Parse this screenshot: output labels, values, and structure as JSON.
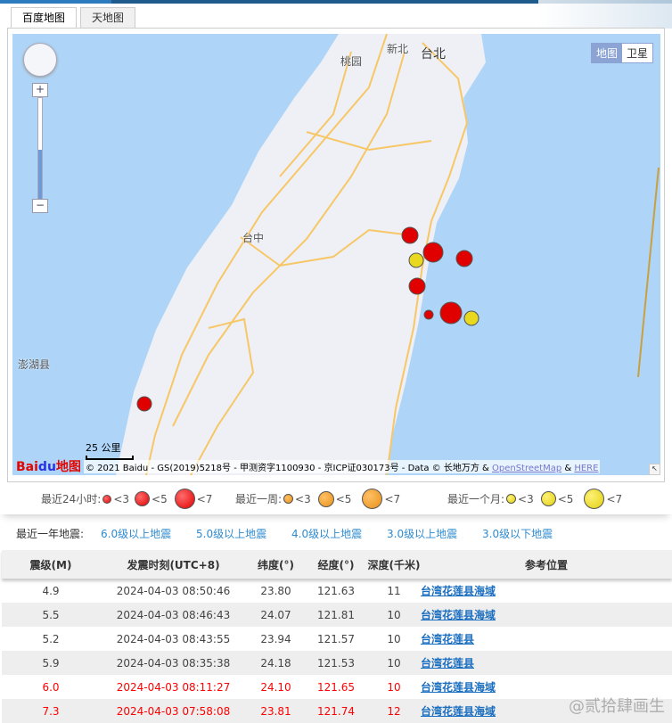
{
  "tabs": [
    "百度地图",
    "天地图"
  ],
  "map": {
    "type_buttons": [
      "地图",
      "卫星"
    ],
    "places": {
      "taibei": "台北",
      "xinbei": "新北",
      "taoyuan": "桃园",
      "taizhong": "台中",
      "penghu": "澎湖县"
    },
    "scale": "25 公里",
    "logo": "Bai地图",
    "copyright": "© 2021 Baidu - GS(2019)5218号 - 甲测资字1100930 - 京ICP证030173号 - Data © 长地万方 & ",
    "osm": "OpenStreetMap",
    "amp": " & ",
    "here": "HERE",
    "colors": {
      "sea": "#aed5f7",
      "land": "#eef0f6",
      "road": "#f7c766"
    }
  },
  "legend": {
    "day": "最近24小时:",
    "week": "最近一周:",
    "month": "最近一个月:",
    "lt3": "<3",
    "lt5": "<5",
    "lt7": "<7",
    "colors": {
      "day": "#e00000",
      "week": "#e8901a",
      "month": "#e0cf10"
    }
  },
  "year_filter": {
    "label": "最近一年地震:",
    "links": [
      "6.0级以上地震",
      "5.0级以上地震",
      "4.0级以上地震",
      "3.0级以上地震",
      "3.0级以下地震"
    ]
  },
  "table": {
    "headers": [
      "震级(M)",
      "发震时刻(UTC+8)",
      "纬度(°)",
      "经度(°)",
      "深度(千米)",
      "参考位置"
    ],
    "rows": [
      {
        "mag": "4.9",
        "time": "2024-04-03 08:50:46",
        "lat": "23.80",
        "lon": "121.63",
        "depth": "11",
        "loc": "台湾花莲县海域",
        "hot": false
      },
      {
        "mag": "5.5",
        "time": "2024-04-03 08:46:43",
        "lat": "24.07",
        "lon": "121.81",
        "depth": "10",
        "loc": "台湾花莲县海域",
        "hot": false
      },
      {
        "mag": "5.2",
        "time": "2024-04-03 08:43:55",
        "lat": "23.94",
        "lon": "121.57",
        "depth": "10",
        "loc": "台湾花莲县",
        "hot": false
      },
      {
        "mag": "5.9",
        "time": "2024-04-03 08:35:38",
        "lat": "24.18",
        "lon": "121.53",
        "depth": "10",
        "loc": "台湾花莲县",
        "hot": false
      },
      {
        "mag": "6.0",
        "time": "2024-04-03 08:11:27",
        "lat": "24.10",
        "lon": "121.65",
        "depth": "10",
        "loc": "台湾花莲县海域",
        "hot": true
      },
      {
        "mag": "7.3",
        "time": "2024-04-03 07:58:08",
        "lat": "23.81",
        "lon": "121.74",
        "depth": "12",
        "loc": "台湾花莲县海域",
        "hot": true
      }
    ]
  },
  "watermark": "@贰拾肆画生"
}
